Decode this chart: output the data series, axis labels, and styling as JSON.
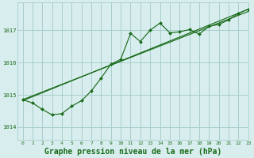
{
  "background_color": "#d8eeee",
  "grid_color": "#aacccc",
  "line_color": "#1a6b1a",
  "marker_color": "#1a6b1a",
  "title": "Graphe pression niveau de la mer (hPa)",
  "title_fontsize": 7,
  "xlim": [
    -0.5,
    23
  ],
  "ylim": [
    1013.6,
    1017.85
  ],
  "yticks": [
    1014,
    1015,
    1016,
    1017
  ],
  "xticks": [
    0,
    1,
    2,
    3,
    4,
    5,
    6,
    7,
    8,
    9,
    10,
    11,
    12,
    13,
    14,
    15,
    16,
    17,
    18,
    19,
    20,
    21,
    22,
    23
  ],
  "trend1_x": [
    0,
    23
  ],
  "trend1_y": [
    1014.85,
    1017.58
  ],
  "trend2_x": [
    0,
    23
  ],
  "trend2_y": [
    1014.82,
    1017.65
  ],
  "main_x": [
    0,
    1,
    2,
    3,
    4,
    5,
    6,
    7,
    8,
    9,
    10,
    11,
    12,
    13,
    14,
    15,
    16,
    17,
    18,
    19,
    20,
    21,
    22,
    23
  ],
  "main_y": [
    1014.85,
    1014.75,
    1014.55,
    1014.38,
    1014.42,
    1014.65,
    1014.82,
    1015.12,
    1015.52,
    1015.95,
    1016.1,
    1016.9,
    1016.65,
    1017.0,
    1017.22,
    1016.92,
    1016.95,
    1017.02,
    1016.88,
    1017.12,
    1017.18,
    1017.32,
    1017.52,
    1017.65
  ]
}
